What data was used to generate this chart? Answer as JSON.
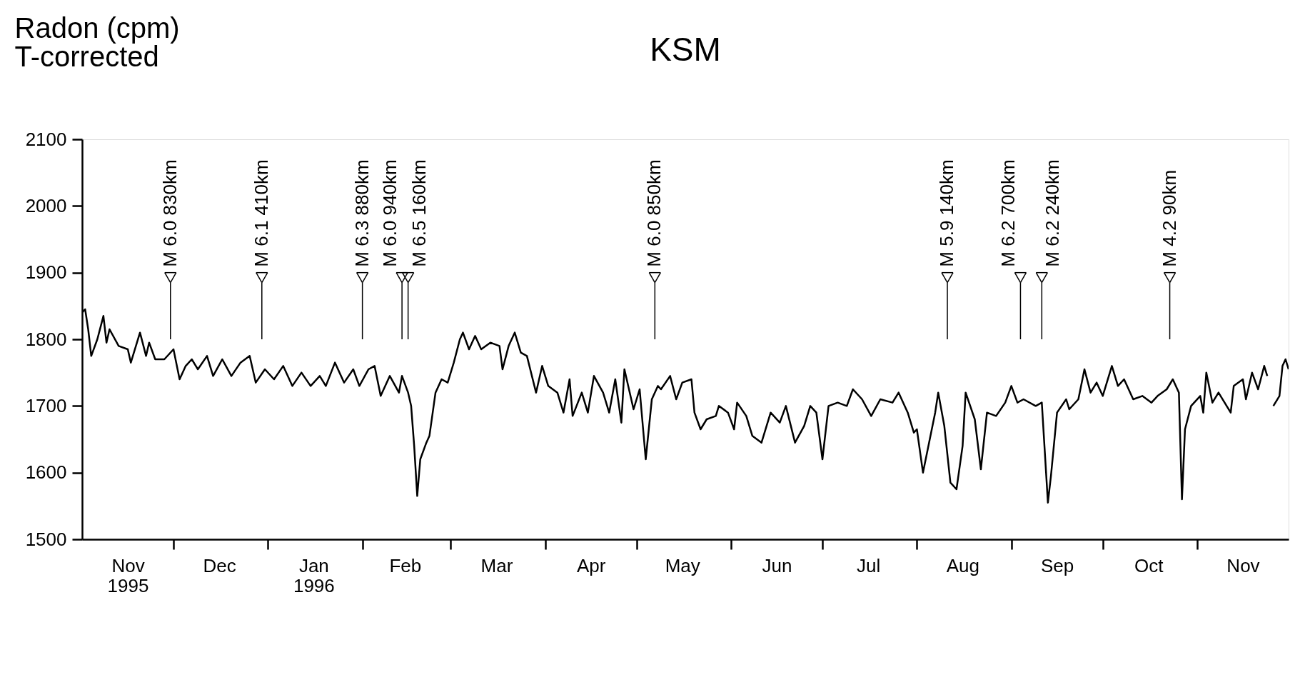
{
  "chart_data": {
    "type": "line",
    "title": "KSM",
    "ylabel": "Radon (cpm)\nT-corrected",
    "xlim": [
      "1995-11-01",
      "1996-12-01"
    ],
    "ylim": [
      1500,
      2100
    ],
    "yticks": [
      1500,
      1600,
      1700,
      1800,
      1900,
      2000,
      2100
    ],
    "xticks": [
      {
        "value": "1995-12-01",
        "label": null
      },
      {
        "value": "1996-01-01",
        "label": null
      },
      {
        "value": "1996-02-01",
        "label": null
      },
      {
        "value": "1996-03-01",
        "label": null
      },
      {
        "value": "1996-04-01",
        "label": null
      },
      {
        "value": "1996-05-01",
        "label": null
      },
      {
        "value": "1996-06-01",
        "label": null
      },
      {
        "value": "1996-07-01",
        "label": null
      },
      {
        "value": "1996-08-01",
        "label": null
      },
      {
        "value": "1996-09-01",
        "label": null
      },
      {
        "value": "1996-10-01",
        "label": null
      },
      {
        "value": "1996-11-01",
        "label": null
      },
      {
        "value": "1995-11-16",
        "label": "Nov 1995"
      },
      {
        "value": "1995-12-16",
        "label": "Dec"
      },
      {
        "value": "1996-01-16",
        "label": "Jan 1996"
      },
      {
        "value": "1996-02-15",
        "label": "Feb"
      },
      {
        "value": "1996-03-16",
        "label": "Mar"
      },
      {
        "value": "1996-04-16",
        "label": "Apr"
      },
      {
        "value": "1996-05-16",
        "label": "May"
      },
      {
        "value": "1996-06-16",
        "label": "Jun"
      },
      {
        "value": "1996-07-16",
        "label": "Jul"
      },
      {
        "value": "1996-08-16",
        "label": "Aug"
      },
      {
        "value": "1996-09-16",
        "label": "Sep"
      },
      {
        "value": "1996-10-16",
        "label": "Oct"
      },
      {
        "value": "1996-11-16",
        "label": "Nov"
      }
    ],
    "x": [
      "1995-11-01",
      "1995-11-02",
      "1995-11-03",
      "1995-11-04",
      "1995-11-06",
      "1995-11-08",
      "1995-11-09",
      "1995-11-10",
      "1995-11-13",
      "1995-11-16",
      "1995-11-17",
      "1995-11-20",
      "1995-11-22",
      "1995-11-23",
      "1995-11-25",
      "1995-11-28",
      "1995-12-01",
      "1995-12-03",
      "1995-12-05",
      "1995-12-07",
      "1995-12-09",
      "1995-12-12",
      "1995-12-14",
      "1995-12-17",
      "1995-12-20",
      "1995-12-23",
      "1995-12-26",
      "1995-12-28",
      "1995-12-31",
      "1996-01-03",
      "1996-01-06",
      "1996-01-09",
      "1996-01-12",
      "1996-01-15",
      "1996-01-18",
      "1996-01-20",
      "1996-01-23",
      "1996-01-26",
      "1996-01-29",
      "1996-01-31",
      "1996-02-03",
      "1996-02-05",
      "1996-02-07",
      "1996-02-10",
      "1996-02-13",
      "1996-02-14",
      "1996-02-16",
      "1996-02-17",
      "1996-02-18",
      "1996-02-19",
      "1996-02-20",
      "1996-02-22",
      "1996-02-23",
      "1996-02-25",
      "1996-02-27",
      "1996-02-29",
      "1996-03-02",
      "1996-03-04",
      "1996-03-05",
      "1996-03-07",
      "1996-03-09",
      "1996-03-11",
      "1996-03-14",
      "1996-03-17",
      "1996-03-18",
      "1996-03-20",
      "1996-03-22",
      "1996-03-24",
      "1996-03-26",
      "1996-03-29",
      "1996-03-31",
      "1996-04-02",
      "1996-04-05",
      "1996-04-07",
      "1996-04-09",
      "1996-04-10",
      "1996-04-13",
      "1996-04-15",
      "1996-04-17",
      "1996-04-20",
      "1996-04-22",
      "1996-04-24",
      "1996-04-26",
      "1996-04-27",
      "1996-04-30",
      "1996-05-02",
      "1996-05-04",
      "1996-05-06",
      "1996-05-08",
      "1996-05-09",
      "1996-05-12",
      "1996-05-14",
      "1996-05-16",
      "1996-05-19",
      "1996-05-20",
      "1996-05-22",
      "1996-05-24",
      "1996-05-27",
      "1996-05-28",
      "1996-05-31",
      "1996-06-02",
      "1996-06-03",
      "1996-06-06",
      "1996-06-08",
      "1996-06-11",
      "1996-06-14",
      "1996-06-17",
      "1996-06-19",
      "1996-06-22",
      "1996-06-25",
      "1996-06-27",
      "1996-06-29",
      "1996-07-01",
      "1996-07-03",
      "1996-07-06",
      "1996-07-09",
      "1996-07-11",
      "1996-07-14",
      "1996-07-17",
      "1996-07-20",
      "1996-07-24",
      "1996-07-26",
      "1996-07-29",
      "1996-07-31",
      "1996-08-01",
      "1996-08-03",
      "1996-08-05",
      "1996-08-07",
      "1996-08-08",
      "1996-08-10",
      "1996-08-12",
      "1996-08-14",
      "1996-08-16",
      "1996-08-17",
      "1996-08-20",
      "1996-08-22",
      "1996-08-24",
      "1996-08-27",
      "1996-08-30",
      "1996-09-01",
      "1996-09-03",
      "1996-09-05",
      "1996-09-09",
      "1996-09-11",
      "1996-09-13",
      "1996-09-14",
      "1996-09-16",
      "1996-09-19",
      "1996-09-20",
      "1996-09-23",
      "1996-09-25",
      "1996-09-27",
      "1996-09-29",
      "1996-10-01",
      "1996-10-03",
      "1996-10-04",
      "1996-10-06",
      "1996-10-08",
      "1996-10-11",
      "1996-10-14",
      "1996-10-17",
      "1996-10-19",
      "1996-10-22",
      "1996-10-24",
      "1996-10-26",
      "1996-10-27",
      "1996-10-28",
      "1996-10-30",
      "1996-11-02",
      "1996-11-03",
      "1996-11-04",
      "1996-11-06",
      "1996-11-08",
      "1996-11-10",
      "1996-11-12",
      "1996-11-13",
      "1996-11-16",
      "1996-11-17",
      "1996-11-19",
      "1996-11-21",
      "1996-11-23",
      "1996-11-24",
      "1996-11-25",
      "1996-11-26",
      "1996-11-28",
      "1996-11-29",
      "1996-11-30",
      "1996-12-01"
    ],
    "series": [
      {
        "color": "#000000",
        "values": [
          1840,
          1845,
          1815,
          1775,
          1800,
          1835,
          1795,
          1815,
          1790,
          1785,
          1765,
          1810,
          1775,
          1795,
          1770,
          1770,
          1785,
          1740,
          1760,
          1770,
          1755,
          1775,
          1745,
          1770,
          1745,
          1765,
          1775,
          1735,
          1755,
          1740,
          1760,
          1730,
          1750,
          1730,
          1745,
          1730,
          1765,
          1735,
          1755,
          1730,
          1755,
          1760,
          1715,
          1745,
          1720,
          1745,
          1720,
          1700,
          1640,
          1565,
          1620,
          1645,
          1655,
          1720,
          1740,
          1735,
          1765,
          1800,
          1810,
          1785,
          1805,
          1785,
          1795,
          1790,
          1755,
          1790,
          1810,
          1780,
          1775,
          1720,
          1760,
          1730,
          1720,
          1690,
          1740,
          1685,
          1720,
          1690,
          1745,
          1720,
          1690,
          1740,
          1675,
          1755,
          1695,
          1725,
          1620,
          1710,
          1730,
          1725,
          1745,
          1710,
          1735,
          1740,
          1690,
          1665,
          1680,
          1685,
          1700,
          1690,
          1665,
          1705,
          1685,
          1655,
          1645,
          1690,
          1675,
          1700,
          1645,
          1670,
          1700,
          1690,
          1620,
          1700,
          1705,
          1700,
          1725,
          1710,
          1685,
          1710,
          1705,
          1720,
          1690,
          1660,
          1665,
          1600,
          1645,
          1690,
          1720,
          1670,
          1585,
          1575,
          1640,
          1720,
          1680,
          1605,
          1690,
          1685,
          1705,
          1730,
          1705,
          1710,
          1700,
          1705,
          1555,
          1595,
          1690,
          1710,
          1695,
          1710,
          1755,
          1720,
          1735,
          1715,
          1745,
          1760,
          1730,
          1740,
          1710,
          1715,
          1705,
          1715,
          1725,
          1740,
          1720,
          1560,
          1665,
          1700,
          1715,
          1690,
          1750,
          1705,
          1720,
          1705,
          1690,
          1730,
          1740,
          1710,
          1750,
          1725,
          1760,
          1745,
          null,
          1700,
          1715,
          1760,
          1770,
          1755
        ]
      }
    ],
    "ref_lines": [
      {
        "axis": "x",
        "value": "1995-11-30",
        "label": "M 6.0 830km"
      },
      {
        "axis": "x",
        "value": "1995-12-30",
        "label": "M 6.1 410km"
      },
      {
        "axis": "x",
        "value": "1996-02-01",
        "label": "M 6.3 880km"
      },
      {
        "axis": "x",
        "value": "1996-02-14",
        "label": "M 6.0 940km"
      },
      {
        "axis": "x",
        "value": "1996-02-16",
        "label": "M 6.5 160km"
      },
      {
        "axis": "x",
        "value": "1996-05-07",
        "label": "M 6.0 850km"
      },
      {
        "axis": "x",
        "value": "1996-08-11",
        "label": "M 5.9 140km"
      },
      {
        "axis": "x",
        "value": "1996-09-04",
        "label": "M 6.2 700km"
      },
      {
        "axis": "x",
        "value": "1996-09-11",
        "label": "M 6.2 240km"
      },
      {
        "axis": "x",
        "value": "1996-10-23",
        "label": "M 4.2 90km"
      }
    ]
  }
}
